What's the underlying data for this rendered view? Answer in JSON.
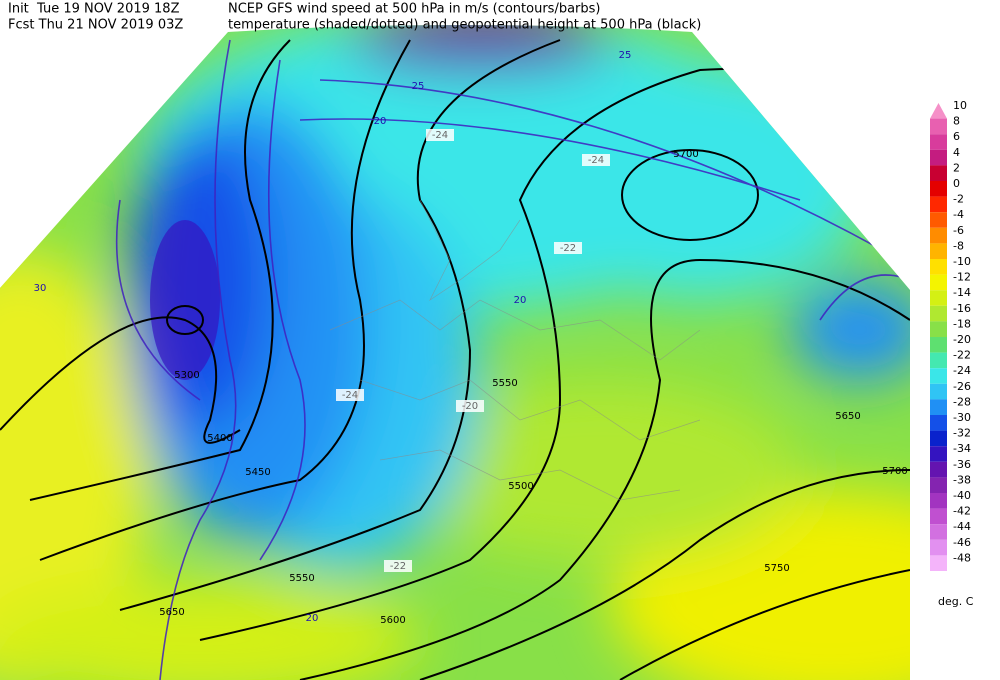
{
  "header": {
    "init": "Init  Tue 19 NOV 2019 18Z",
    "forecast": "Fcst Thu 21 NOV 2019 03Z",
    "title_line1": "NCEP GFS wind speed at 500 hPa in m/s (contours/barbs)",
    "title_line2": "temperature (shaded/dotted) and geopotential height at 500 hPa (black)"
  },
  "colorbar": {
    "levels": [
      10,
      8,
      6,
      4,
      2,
      0,
      -2,
      -4,
      -6,
      -8,
      -10,
      -12,
      -14,
      -16,
      -18,
      -20,
      -22,
      -24,
      -26,
      -28,
      -30,
      -32,
      -34,
      -36,
      -38,
      -40,
      -42,
      -44,
      -46,
      -48
    ],
    "colors": [
      "#f590c8",
      "#e860b0",
      "#d83c9c",
      "#c41c80",
      "#c80032",
      "#e40000",
      "#ff2800",
      "#ff5a00",
      "#ff8c00",
      "#ffb400",
      "#ffe000",
      "#f4f400",
      "#d4f014",
      "#b0e830",
      "#88e048",
      "#5ee070",
      "#44e8b0",
      "#3ae6e8",
      "#30c4f4",
      "#2090f4",
      "#1450e8",
      "#0a22cc",
      "#3414c0",
      "#6414b0",
      "#8424b0",
      "#a234c0",
      "#c050d0",
      "#d270e0",
      "#e290f0",
      "#f4b4fa"
    ],
    "unit": "deg. C"
  },
  "map_labels": [
    "5700",
    "5650",
    "5550",
    "5500",
    "5450",
    "5400",
    "5300",
    "5600",
    "5650",
    "5750",
    "5700",
    "5550",
    "20",
    "25",
    "30",
    "20",
    "25",
    "20",
    "-24",
    "-22",
    "-20",
    "-24",
    "-22",
    "-24"
  ]
}
